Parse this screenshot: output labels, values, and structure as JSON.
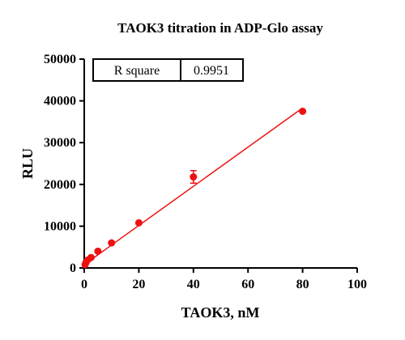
{
  "chart_data": {
    "type": "scatter",
    "title": "TAOK3 titration in  ADP-Glo assay",
    "xlabel": "TAOK3, nM",
    "ylabel": "RLU",
    "xlim": [
      0,
      100
    ],
    "ylim": [
      0,
      50000
    ],
    "x_ticks": [
      "0",
      "20",
      "40",
      "60",
      "80",
      "100"
    ],
    "y_ticks": [
      "0",
      "10000",
      "20000",
      "30000",
      "40000",
      "50000"
    ],
    "grid": false,
    "legend": "none",
    "series": [
      {
        "color": "#ee1111",
        "x": [
          0.3125,
          0.625,
          1.25,
          2.5,
          5,
          10,
          20,
          40,
          80
        ],
        "y": [
          800,
          1300,
          1900,
          2500,
          4000,
          6000,
          10800,
          21800,
          37500
        ],
        "error": [
          0,
          0,
          0,
          0,
          0,
          0,
          0,
          1500,
          0
        ]
      }
    ],
    "fit_line": {
      "color": "#ee1111",
      "x": [
        0,
        80
      ],
      "y": [
        800,
        38300
      ]
    },
    "stats_table": {
      "label": "R square",
      "value": "0.9951"
    }
  }
}
